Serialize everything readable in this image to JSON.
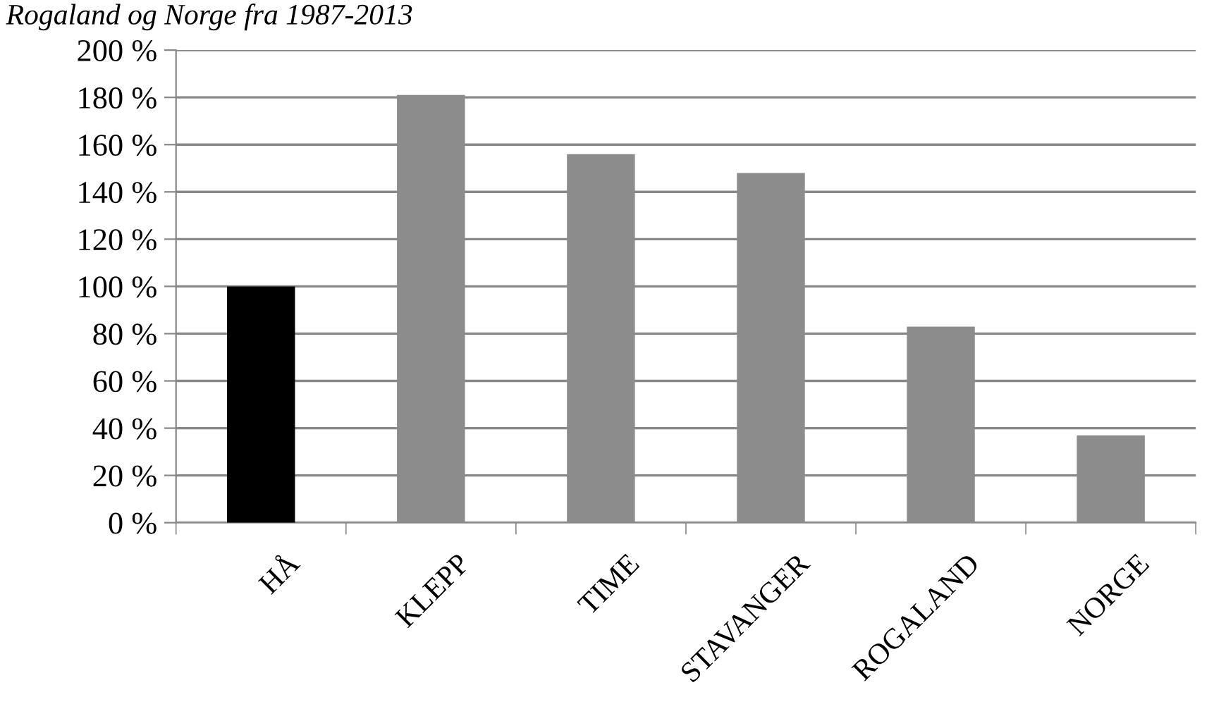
{
  "chart_data": {
    "type": "bar",
    "title": "Rogaland og Norge fra 1987-2013",
    "categories": [
      "HÅ",
      "KLEPP",
      "TIME",
      "STAVANGER",
      "ROGALAND",
      "NORGE"
    ],
    "values": [
      100,
      181,
      156,
      148,
      83,
      37
    ],
    "colors": [
      "#000000",
      "#8c8c8c",
      "#8c8c8c",
      "#8c8c8c",
      "#8c8c8c",
      "#8c8c8c"
    ],
    "ylim": [
      0,
      200
    ],
    "yticks": [
      {
        "value": 0,
        "label": "0 %"
      },
      {
        "value": 20,
        "label": "20 %"
      },
      {
        "value": 40,
        "label": "40 %"
      },
      {
        "value": 60,
        "label": "60 %"
      },
      {
        "value": 80,
        "label": "80 %"
      },
      {
        "value": 100,
        "label": "100 %"
      },
      {
        "value": 120,
        "label": "120 %"
      },
      {
        "value": 140,
        "label": "140 %"
      },
      {
        "value": 160,
        "label": "160 %"
      },
      {
        "value": 180,
        "label": "180 %"
      },
      {
        "value": 200,
        "label": "200 %"
      }
    ],
    "grid": "y",
    "legend": false
  }
}
